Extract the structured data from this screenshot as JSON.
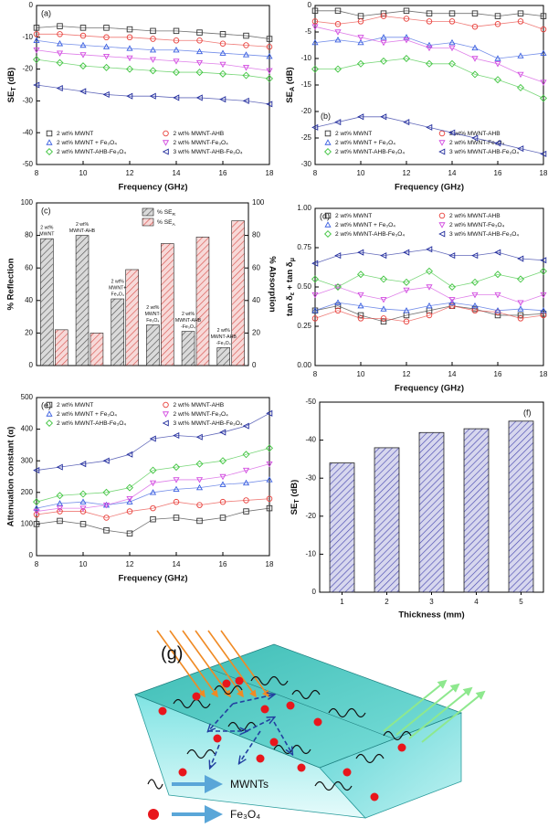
{
  "chart_data": [
    {
      "type": "line",
      "panel_label": "(a)",
      "xlabel": "Frequency (GHz)",
      "ylabel": [
        "SE",
        "T",
        " (dB)"
      ],
      "x": [
        8,
        9,
        10,
        11,
        12,
        13,
        14,
        15,
        16,
        17,
        18
      ],
      "xlim": [
        8,
        18
      ],
      "xticks": [
        8,
        10,
        12,
        14,
        16,
        18
      ],
      "ylim": [
        -50,
        0
      ],
      "yticks": [
        -50,
        -40,
        -30,
        -20,
        -10,
        0
      ],
      "legend": "lower",
      "series": [
        {
          "name": "2 wt% MWNT",
          "color": "#333333",
          "marker": "square",
          "values": [
            -7,
            -6.5,
            -7,
            -7,
            -7.5,
            -8,
            -8,
            -8.5,
            -9,
            -9.5,
            -10.5
          ]
        },
        {
          "name": "2 wt% MWNT-AHB",
          "color": "#e8413c",
          "marker": "circle",
          "values": [
            -9,
            -9,
            -9.5,
            -10,
            -10,
            -10.5,
            -11,
            -11,
            -12,
            -12.5,
            -13
          ]
        },
        {
          "name": "2 wt% MWNT + Fe₃O₄",
          "color": "#3a5fe0",
          "marker": "up",
          "values": [
            -11,
            -12,
            -12.5,
            -13,
            -13.5,
            -14,
            -14,
            -14.5,
            -15,
            -15.5,
            -16
          ]
        },
        {
          "name": "2 wt% MWNT-Fe₃O₄",
          "color": "#d24ae0",
          "marker": "down",
          "values": [
            -14,
            -15,
            -15.5,
            -16,
            -16.5,
            -17,
            -17.5,
            -18,
            -18.5,
            -19.5,
            -20.5
          ]
        },
        {
          "name": "2 wt% MWNT-AHB-Fe₃O₄",
          "color": "#3fc43f",
          "marker": "diamond",
          "values": [
            -17,
            -18,
            -19,
            -19.5,
            -20,
            -20.5,
            -21,
            -21,
            -21.5,
            -22,
            -23
          ]
        },
        {
          "name": "3 wt% MWNT-AHB-Fe₃O₄",
          "color": "#1f2a9c",
          "marker": "left",
          "values": [
            -25,
            -26,
            -27,
            -28,
            -28.5,
            -28.5,
            -29,
            -29,
            -29.5,
            -30,
            -31
          ]
        }
      ]
    },
    {
      "type": "line",
      "panel_label": "(b)",
      "xlabel": "Frequency (GHz)",
      "ylabel": [
        "SE",
        "A",
        " (dB)"
      ],
      "x": [
        8,
        9,
        10,
        11,
        12,
        13,
        14,
        15,
        16,
        17,
        18
      ],
      "xlim": [
        8,
        18
      ],
      "xticks": [
        8,
        10,
        12,
        14,
        16,
        18
      ],
      "ylim": [
        -30,
        0
      ],
      "yticks": [
        -30,
        -25,
        -20,
        -15,
        -10,
        -5,
        0
      ],
      "legend": "lower",
      "series": [
        {
          "name": "2 wt% MWNT",
          "color": "#333333",
          "marker": "square",
          "values": [
            -1,
            -1,
            -2,
            -1.5,
            -1,
            -1.5,
            -1.5,
            -1.5,
            -2,
            -1.5,
            -2
          ]
        },
        {
          "name": "2 wt% MWNT-AHB",
          "color": "#e8413c",
          "marker": "circle",
          "values": [
            -3,
            -3.5,
            -3,
            -2,
            -2.5,
            -3,
            -3,
            -4,
            -3.5,
            -3,
            -4.5
          ]
        },
        {
          "name": "2 wt% MWNT + Fe₃O₄",
          "color": "#3a5fe0",
          "marker": "up",
          "values": [
            -7,
            -6.5,
            -7,
            -6,
            -6,
            -7.5,
            -7,
            -8,
            -10,
            -9.5,
            -9
          ]
        },
        {
          "name": "2 wt% MWNT-Fe₃O₄",
          "color": "#d24ae0",
          "marker": "down",
          "values": [
            -4,
            -5,
            -6,
            -7,
            -6.5,
            -8,
            -8,
            -10,
            -11,
            -13,
            -14.5
          ]
        },
        {
          "name": "2 wt% MWNT-AHB-Fe₃O₄",
          "color": "#3fc43f",
          "marker": "diamond",
          "values": [
            -12,
            -12,
            -11,
            -10.5,
            -10,
            -11,
            -11,
            -13,
            -14,
            -15.5,
            -17.5
          ]
        },
        {
          "name": "3 wt% MWNT-AHB-Fe₃O₄",
          "color": "#1f2a9c",
          "marker": "left",
          "values": [
            -23,
            -22,
            -21,
            -21,
            -22,
            -23,
            -24,
            -25,
            -26,
            -27,
            -28
          ]
        }
      ]
    },
    {
      "type": "bar",
      "panel_label": "(c)",
      "ylabel": "% Reflection",
      "y2label": "% Absorption",
      "categories": [
        [
          "2 wt%",
          "MWNT"
        ],
        [
          "2 wt%",
          "MWNT-AHB"
        ],
        [
          "2 wt%",
          "MWNT+",
          "Fe₃O₄"
        ],
        [
          "2 wt%",
          "MWNT-",
          "Fe₃O₄"
        ],
        [
          "2 wt%",
          "MWNT-AHB",
          "-Fe₃O₄"
        ],
        [
          "2 wt%",
          "MWNT-AHB",
          "-Fe₃O₄"
        ]
      ],
      "ylim": [
        0,
        100
      ],
      "yticks": [
        0,
        20,
        40,
        60,
        80,
        100
      ],
      "y2lim": [
        0,
        100
      ],
      "y2ticks": [
        0,
        20,
        40,
        60,
        80,
        100
      ],
      "legend": "upper",
      "series": [
        {
          "name": [
            "% SE",
            "R"
          ],
          "color": "#555555",
          "values": [
            78,
            80,
            41,
            25,
            21,
            11
          ]
        },
        {
          "name": [
            "% SE",
            "A"
          ],
          "color": "#d9534f",
          "axis": "y2",
          "values": [
            22,
            20,
            59,
            75,
            79,
            89
          ]
        }
      ]
    },
    {
      "type": "line",
      "panel_label": "(d)",
      "xlabel": "Frequency (GHz)",
      "ylabel": [
        "tan δ",
        "ε",
        " + tan δ",
        "μ"
      ],
      "x": [
        8,
        9,
        10,
        11,
        12,
        13,
        14,
        15,
        16,
        17,
        18
      ],
      "xlim": [
        8,
        18
      ],
      "xticks": [
        8,
        10,
        12,
        14,
        16,
        18
      ],
      "ylim": [
        0,
        1
      ],
      "yticks": [
        {
          "value": 0,
          "label": "0.00"
        },
        {
          "value": 0.25,
          "label": "0.25"
        },
        {
          "value": 0.5,
          "label": "0.50"
        },
        {
          "value": 0.75,
          "label": "0.75"
        },
        {
          "value": 1,
          "label": "1.00"
        }
      ],
      "legend": "upper",
      "series": [
        {
          "name": "2 wt% MWNT",
          "color": "#333333",
          "marker": "square",
          "values": [
            0.35,
            0.38,
            0.32,
            0.28,
            0.32,
            0.35,
            0.38,
            0.36,
            0.32,
            0.32,
            0.33
          ]
        },
        {
          "name": "2 wt% MWNT-AHB",
          "color": "#e8413c",
          "marker": "circle",
          "values": [
            0.3,
            0.35,
            0.3,
            0.3,
            0.28,
            0.32,
            0.38,
            0.35,
            0.34,
            0.3,
            0.32
          ]
        },
        {
          "name": "2 wt% MWNT + Fe₃O₄",
          "color": "#3a5fe0",
          "marker": "up",
          "values": [
            0.35,
            0.4,
            0.38,
            0.36,
            0.35,
            0.38,
            0.4,
            0.38,
            0.35,
            0.36,
            0.35
          ]
        },
        {
          "name": "2 wt% MWNT-Fe₃O₄",
          "color": "#d24ae0",
          "marker": "down",
          "values": [
            0.45,
            0.5,
            0.45,
            0.42,
            0.48,
            0.5,
            0.42,
            0.45,
            0.45,
            0.4,
            0.45
          ]
        },
        {
          "name": "2 wt% MWNT-AHB-Fe₃O₄",
          "color": "#3fc43f",
          "marker": "diamond",
          "values": [
            0.55,
            0.5,
            0.58,
            0.55,
            0.53,
            0.6,
            0.5,
            0.53,
            0.58,
            0.55,
            0.6
          ]
        },
        {
          "name": "3 wt% MWNT-AHB-Fe₃O₄",
          "color": "#1f2a9c",
          "marker": "left",
          "values": [
            0.65,
            0.7,
            0.72,
            0.7,
            0.72,
            0.74,
            0.7,
            0.7,
            0.72,
            0.68,
            0.67
          ]
        }
      ]
    },
    {
      "type": "line",
      "panel_label": "(e)",
      "xlabel": "Frequency (GHz)",
      "ylabel": "Attenuation constant (α)",
      "x": [
        8,
        9,
        10,
        11,
        12,
        13,
        14,
        15,
        16,
        17,
        18
      ],
      "xlim": [
        8,
        18
      ],
      "xticks": [
        8,
        10,
        12,
        14,
        16,
        18
      ],
      "ylim": [
        0,
        500
      ],
      "yticks": [
        0,
        100,
        200,
        300,
        400,
        500
      ],
      "legend": "upper",
      "series": [
        {
          "name": "2 wt% MWNT",
          "color": "#333333",
          "marker": "square",
          "values": [
            100,
            110,
            100,
            80,
            70,
            115,
            120,
            110,
            120,
            140,
            150
          ]
        },
        {
          "name": "2 wt% MWNT-AHB",
          "color": "#e8413c",
          "marker": "circle",
          "values": [
            130,
            140,
            140,
            120,
            140,
            150,
            170,
            160,
            170,
            175,
            180
          ]
        },
        {
          "name": "2 wt% MWNT + Fe₃O₄",
          "color": "#3a5fe0",
          "marker": "up",
          "values": [
            150,
            165,
            170,
            160,
            170,
            200,
            210,
            215,
            225,
            230,
            240
          ]
        },
        {
          "name": "2 wt% MWNT-Fe₃O₄",
          "color": "#d24ae0",
          "marker": "down",
          "values": [
            140,
            150,
            150,
            160,
            180,
            230,
            240,
            240,
            250,
            270,
            290
          ]
        },
        {
          "name": "2 wt% MWNT-AHB-Fe₃O₄",
          "color": "#3fc43f",
          "marker": "diamond",
          "values": [
            170,
            190,
            195,
            200,
            215,
            270,
            280,
            290,
            300,
            320,
            340
          ]
        },
        {
          "name": "3 wt% MWNT-AHB-Fe₃O₄",
          "color": "#1f2a9c",
          "marker": "left",
          "values": [
            270,
            280,
            290,
            300,
            320,
            370,
            380,
            375,
            390,
            410,
            450
          ]
        }
      ]
    },
    {
      "type": "column",
      "panel_label": "(f)",
      "xlabel": "Thickness (mm)",
      "ylabel": [
        "SE",
        "T",
        " (dB)"
      ],
      "categories": [
        "1",
        "2",
        "3",
        "4",
        "5"
      ],
      "values": [
        -34,
        -38,
        -42,
        -43,
        -45
      ],
      "color": "#4a4ab0",
      "ylim": [
        0,
        -50
      ],
      "yticks": [
        0,
        -10,
        -20,
        -30,
        -40,
        -50
      ]
    }
  ],
  "diagram": {
    "label": "(g)",
    "legend": [
      "MWNTs",
      "Fe₃O₄"
    ]
  }
}
